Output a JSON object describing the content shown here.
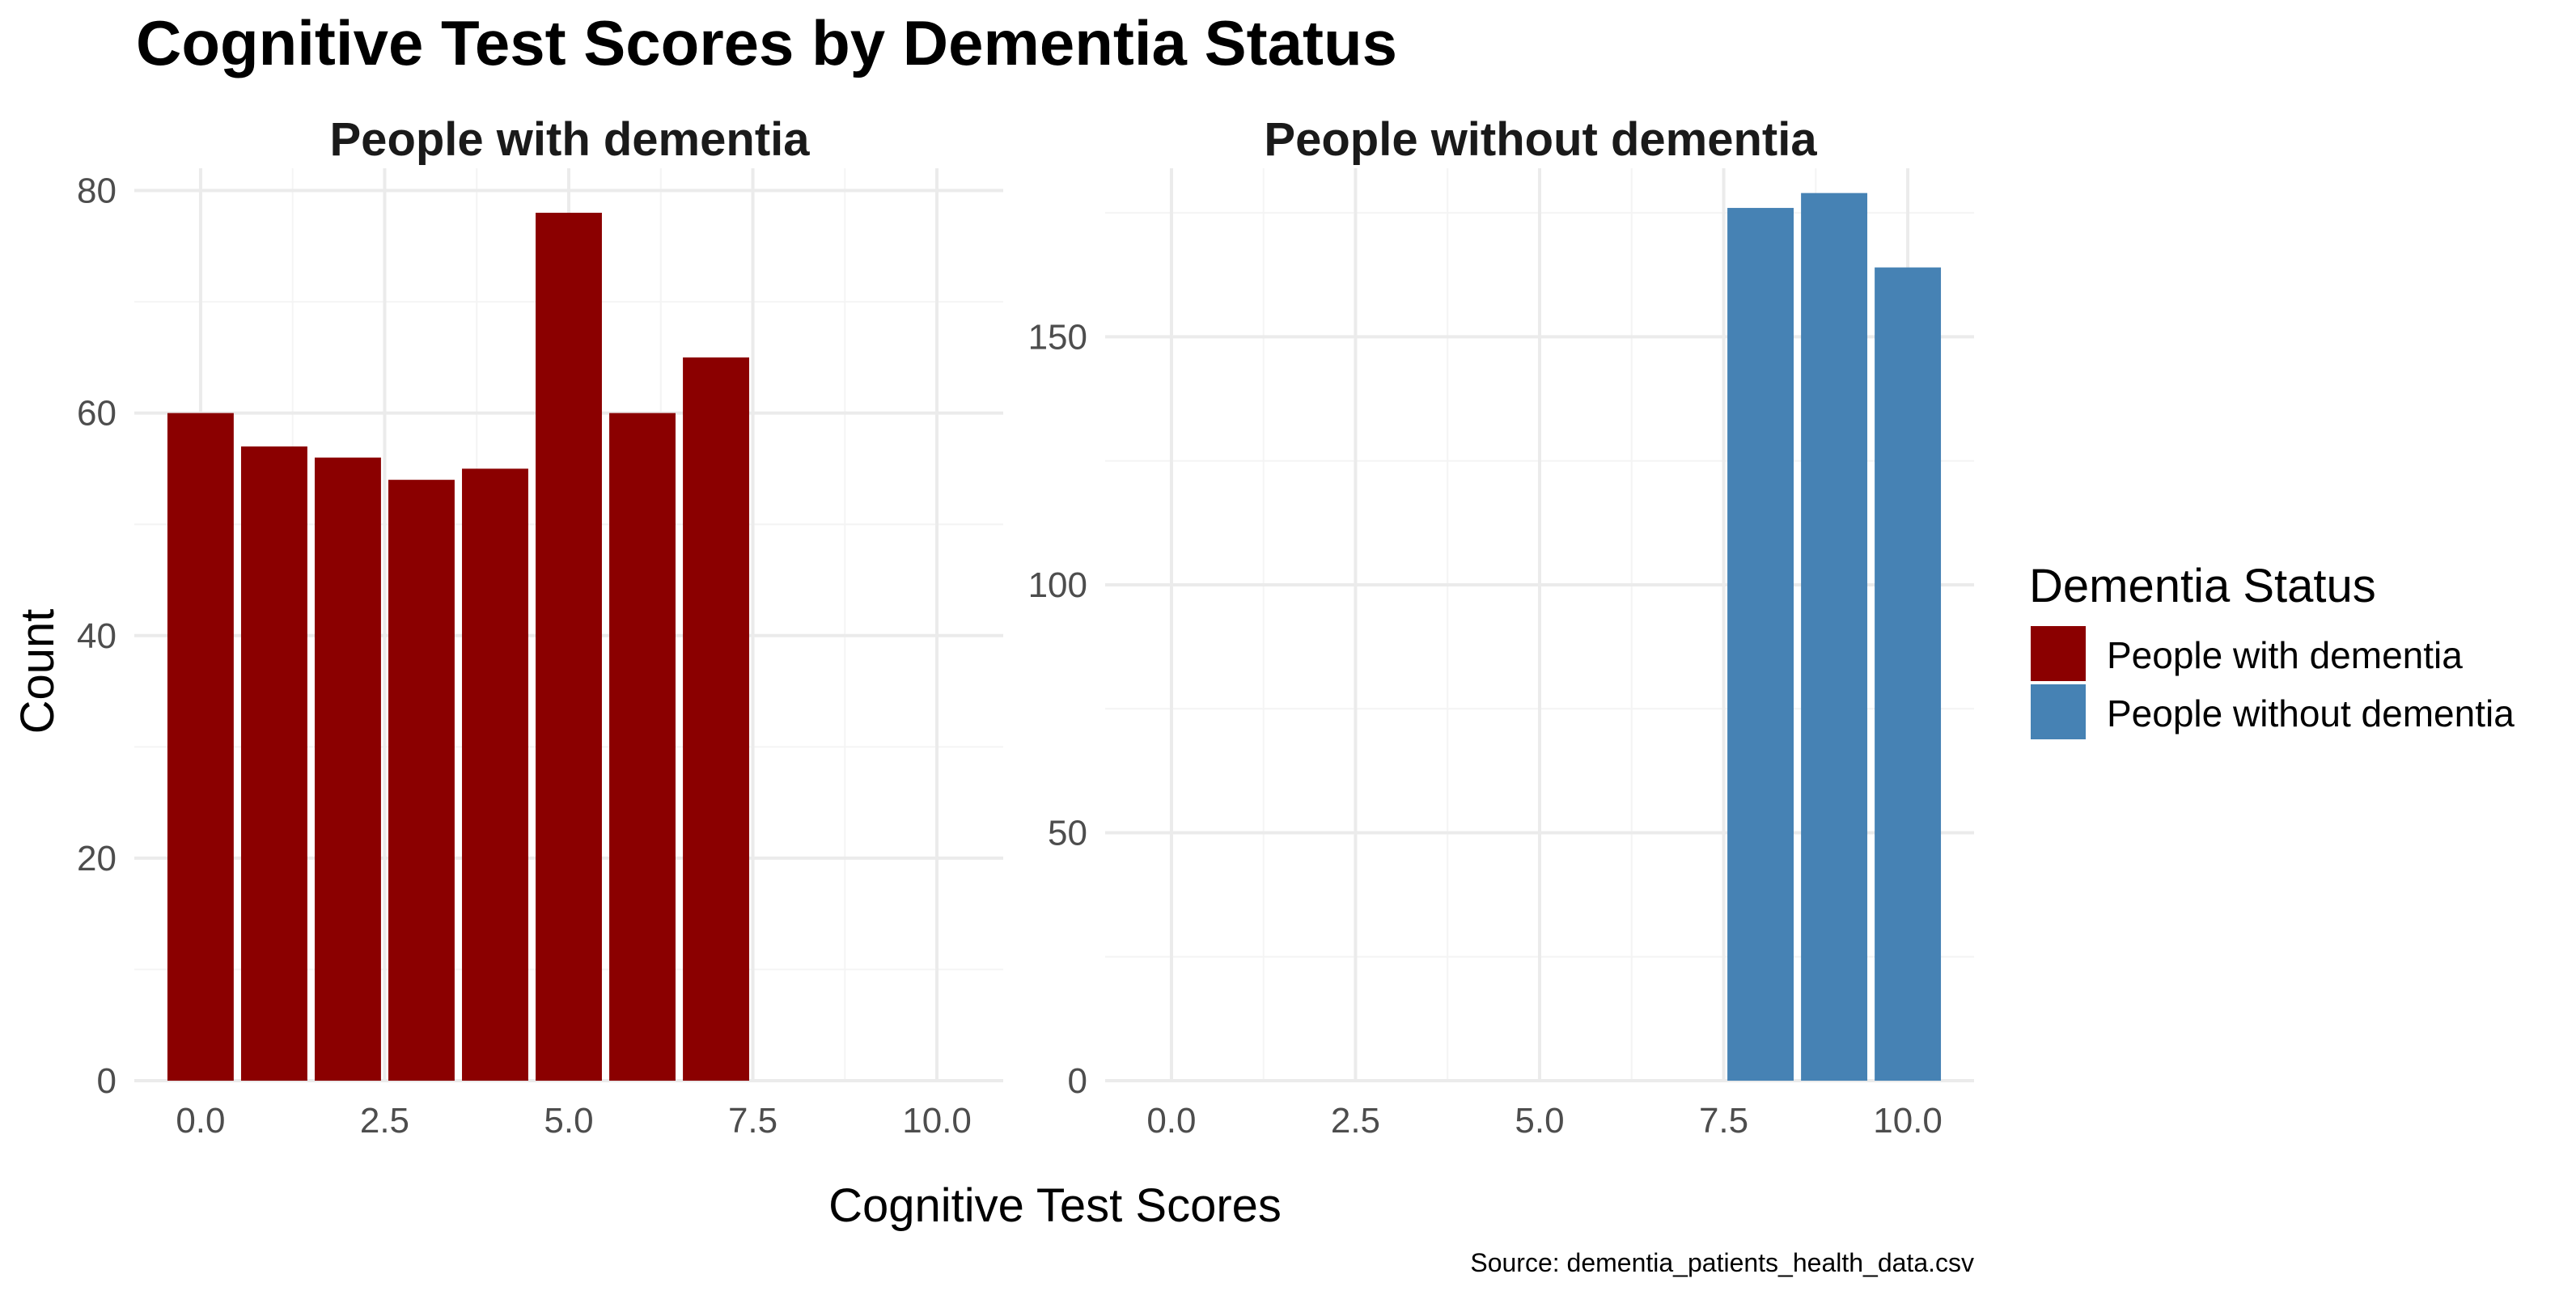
{
  "title": "Cognitive Test Scores by Dementia Status",
  "caption": "Source: dementia_patients_health_data.csv",
  "colors": {
    "with_dementia": "#8b0000",
    "without_dementia": "#4682b4",
    "grid": "#ebebeb",
    "background": "#ffffff"
  },
  "legend": {
    "title": "Dementia Status",
    "placement": "right",
    "items": [
      {
        "label": "People with dementia",
        "color": "#8b0000"
      },
      {
        "label": "People without dementia",
        "color": "#4682b4"
      }
    ]
  },
  "chart_data": [
    {
      "type": "bar",
      "facet": "People with dementia",
      "title": "People with dementia",
      "xlabel": "Cognitive Test Scores",
      "ylabel": "Count",
      "x": [
        0,
        1,
        2,
        3,
        4,
        5,
        6,
        7
      ],
      "values": [
        60,
        57,
        56,
        54,
        55,
        78,
        60,
        65
      ],
      "color": "#8b0000",
      "xlim": [
        -0.9,
        10.9
      ],
      "ylim": [
        0,
        82
      ],
      "xticks": [
        0,
        2.5,
        5,
        7.5,
        10
      ],
      "xtick_labels": [
        "0.0",
        "2.5",
        "5.0",
        "7.5",
        "10.0"
      ],
      "yticks": [
        0,
        20,
        40,
        60,
        80
      ],
      "ytick_labels": [
        "0",
        "20",
        "40",
        "60",
        "80"
      ],
      "grid": true
    },
    {
      "type": "bar",
      "facet": "People without dementia",
      "title": "People without dementia",
      "xlabel": "Cognitive Test Scores",
      "ylabel": "Count",
      "x": [
        8,
        9,
        10
      ],
      "values": [
        176,
        179,
        164
      ],
      "color": "#4682b4",
      "xlim": [
        -0.9,
        10.9
      ],
      "ylim": [
        0,
        184
      ],
      "xticks": [
        0,
        2.5,
        5,
        7.5,
        10
      ],
      "xtick_labels": [
        "0.0",
        "2.5",
        "5.0",
        "7.5",
        "10.0"
      ],
      "yticks": [
        0,
        50,
        100,
        150
      ],
      "ytick_labels": [
        "0",
        "50",
        "100",
        "150"
      ],
      "grid": true
    }
  ]
}
